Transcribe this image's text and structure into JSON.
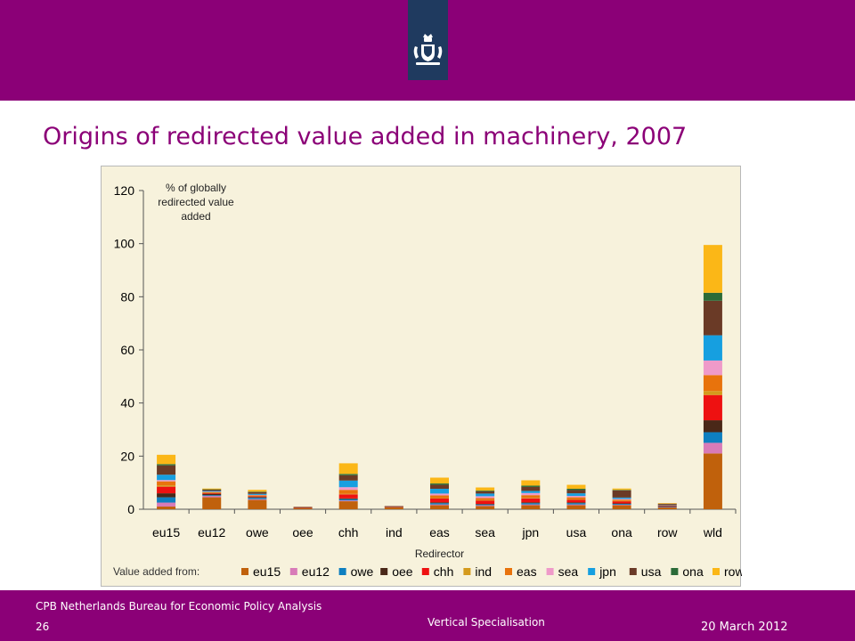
{
  "slide": {
    "title": "Origins of redirected value added in machinery, 2007"
  },
  "footer": {
    "organization": "CPB Netherlands Bureau for Economic Policy Analysis",
    "page_number": "26",
    "topic": "Vertical Specialisation",
    "date": "20 March 2012"
  },
  "colors": {
    "band": "#8b0077",
    "logo_bg": "#1f3a5f",
    "chart_bg": "#f7f2dc"
  },
  "logo": {
    "icon": "crown-shield-emblem-icon"
  },
  "chart_data": {
    "type": "bar",
    "stacked": true,
    "ylabel": "% of globally redirected value added",
    "xlabel": "Redirector",
    "legend_title": "Value added from:",
    "legend_position": "bottom",
    "ylim": [
      0,
      120
    ],
    "yticks": [
      0,
      20,
      40,
      60,
      80,
      100,
      120
    ],
    "grid": false,
    "categories": [
      "eu15",
      "eu12",
      "owe",
      "oee",
      "chh",
      "ind",
      "eas",
      "sea",
      "jpn",
      "usa",
      "ona",
      "row",
      "wld"
    ],
    "series": [
      {
        "name": "eu15",
        "color": "#c0610c",
        "values": [
          1.0,
          4.5,
          3.5,
          0.5,
          3.0,
          0.8,
          1.5,
          1.2,
          1.5,
          1.5,
          1.5,
          0.8,
          21.0
        ]
      },
      {
        "name": "eu12",
        "color": "#d87bb8",
        "values": [
          1.5,
          0.5,
          0.3,
          0.1,
          0.3,
          0.1,
          0.3,
          0.3,
          0.3,
          0.3,
          0.2,
          0.1,
          4.0
        ]
      },
      {
        "name": "owe",
        "color": "#0e7fc0",
        "values": [
          2.0,
          0.3,
          0.5,
          0.05,
          0.5,
          0.05,
          0.5,
          0.3,
          0.5,
          0.5,
          0.3,
          0.1,
          4.0
        ]
      },
      {
        "name": "oee",
        "color": "#4a2818",
        "values": [
          1.5,
          0.5,
          0.3,
          0.05,
          0.3,
          0.05,
          0.3,
          0.2,
          0.3,
          0.3,
          0.2,
          0.2,
          4.5
        ]
      },
      {
        "name": "chh",
        "color": "#ee1111",
        "values": [
          2.5,
          0.3,
          0.3,
          0.05,
          1.5,
          0.05,
          1.5,
          1.3,
          1.5,
          1.0,
          0.8,
          0.2,
          9.5
        ]
      },
      {
        "name": "ind",
        "color": "#d49a1c",
        "values": [
          0.5,
          0.1,
          0.1,
          0.0,
          0.2,
          0.0,
          0.1,
          0.1,
          0.2,
          0.1,
          0.1,
          0.0,
          1.5
        ]
      },
      {
        "name": "eas",
        "color": "#e8730c",
        "values": [
          1.5,
          0.3,
          0.3,
          0.05,
          1.5,
          0.05,
          1.0,
          0.8,
          1.0,
          0.8,
          0.5,
          0.2,
          6.0
        ]
      },
      {
        "name": "sea",
        "color": "#ef9ac9",
        "values": [
          0.5,
          0.1,
          0.1,
          0.0,
          1.0,
          0.0,
          0.7,
          0.7,
          0.8,
          0.5,
          0.3,
          0.0,
          5.5
        ]
      },
      {
        "name": "jpn",
        "color": "#169fe0",
        "values": [
          2.0,
          0.3,
          0.4,
          0.0,
          2.5,
          0.0,
          1.8,
          1.0,
          0.8,
          1.0,
          0.5,
          0.1,
          9.5
        ]
      },
      {
        "name": "usa",
        "color": "#6a3a26",
        "values": [
          3.5,
          0.5,
          0.7,
          0.1,
          2.0,
          0.1,
          1.5,
          0.8,
          1.5,
          1.2,
          2.7,
          0.4,
          13.0
        ]
      },
      {
        "name": "ona",
        "color": "#2b6b38",
        "values": [
          0.5,
          0.1,
          0.1,
          0.0,
          0.5,
          0.0,
          0.5,
          0.3,
          0.5,
          0.5,
          0.2,
          0.0,
          3.0
        ]
      },
      {
        "name": "row",
        "color": "#fbb717",
        "values": [
          3.5,
          0.3,
          0.7,
          0.0,
          4.0,
          0.0,
          2.2,
          1.2,
          2.0,
          1.5,
          0.5,
          0.2,
          18.0
        ]
      }
    ]
  }
}
